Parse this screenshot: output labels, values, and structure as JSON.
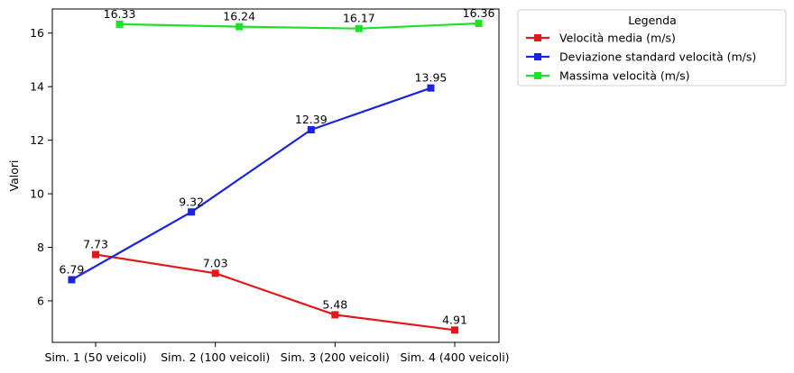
{
  "chart_data": {
    "type": "line",
    "title": "",
    "xlabel": "",
    "ylabel": "Valori",
    "categories": [
      "Sim. 1 (50 veicoli)",
      "Sim. 2 (100 veicoli)",
      "Sim. 3 (200 veicoli)",
      "Sim. 4 (400 veicoli)"
    ],
    "ylim": [
      4.45,
      16.9
    ],
    "yticks": [
      6,
      8,
      10,
      12,
      14,
      16
    ],
    "grid": false,
    "legend_title": "Legenda",
    "legend_position": "outside-top-right",
    "series": [
      {
        "name": "Velocità media (m/s)",
        "color": "#e0191b",
        "x": [
          0,
          1,
          2,
          3
        ],
        "values": [
          7.73,
          7.03,
          5.48,
          4.91
        ]
      },
      {
        "name": "Deviazione standard velocità (m/s)",
        "color": "#1a24d8",
        "x": [
          -0.2,
          0.8,
          1.8,
          2.8
        ],
        "values": [
          6.79,
          9.32,
          12.39,
          13.95
        ]
      },
      {
        "name": "Massima velocità (m/s)",
        "color": "#1ee12a",
        "x": [
          0.2,
          1.2,
          2.2,
          3.2
        ],
        "values": [
          16.33,
          16.24,
          16.17,
          16.36
        ]
      }
    ]
  }
}
